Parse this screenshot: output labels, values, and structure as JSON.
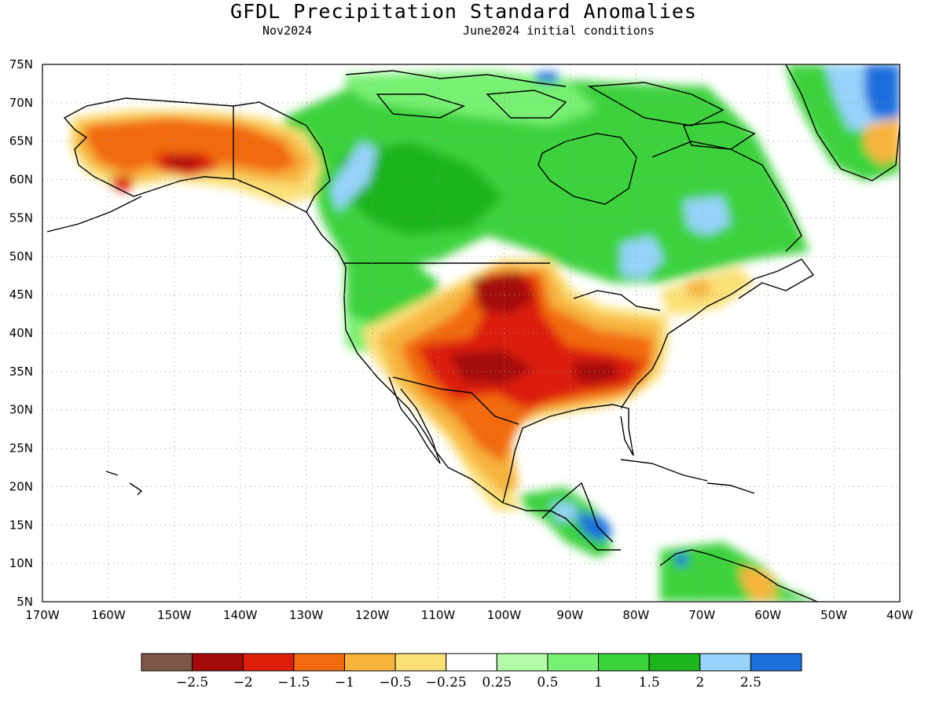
{
  "title": "GFDL Precipitation Standard Anomalies",
  "subtitle_left": "Nov2024",
  "subtitle_right": "June2024 initial conditions",
  "map": {
    "lon_range": [
      -170,
      -40
    ],
    "lat_range": [
      5,
      75
    ],
    "lon_ticks": [
      "170W",
      "160W",
      "150W",
      "140W",
      "130W",
      "120W",
      "110W",
      "100W",
      "90W",
      "80W",
      "70W",
      "60W",
      "50W",
      "40W"
    ],
    "lat_ticks": [
      "75N",
      "70N",
      "65N",
      "60N",
      "55N",
      "50N",
      "45N",
      "40N",
      "35N",
      "30N",
      "25N",
      "20N",
      "15N",
      "10N",
      "5N"
    ],
    "grid": "dotted"
  },
  "colorbar": {
    "colors": [
      "#7f5548",
      "#a50a0a",
      "#dc1e0a",
      "#f26a10",
      "#f7b43c",
      "#fbe078",
      "#ffffff",
      "#b4faaa",
      "#78f073",
      "#3cd23c",
      "#1eb41e",
      "#96d2fa",
      "#1e6edc"
    ],
    "labels": [
      "-2.5",
      "-2",
      "-1.5",
      "-1",
      "-0.5",
      "-0.25",
      "0.25",
      "0.5",
      "1",
      "1.5",
      "2",
      "2.5"
    ]
  }
}
